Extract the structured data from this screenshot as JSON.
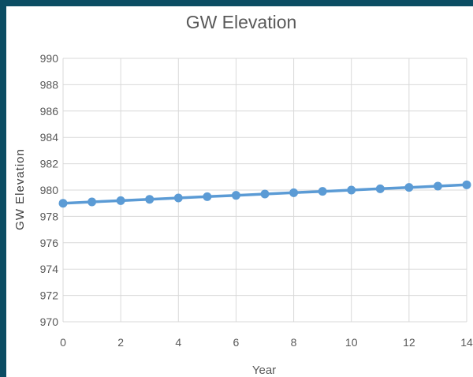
{
  "chart_data": {
    "type": "line",
    "title": "GW Elevation",
    "xlabel": "Year",
    "ylabel": "GW Elevation",
    "xlim": [
      0,
      14
    ],
    "ylim": [
      970,
      990
    ],
    "x_ticks": [
      0,
      2,
      4,
      6,
      8,
      10,
      12,
      14
    ],
    "y_ticks": [
      970,
      972,
      974,
      976,
      978,
      980,
      982,
      984,
      986,
      988,
      990
    ],
    "grid": true,
    "legend": "none",
    "colors": {
      "series": "#5b9bd5",
      "grid": "#d9d9d9",
      "text": "#595959",
      "border": "#0b4d63"
    },
    "series": [
      {
        "x": [
          0,
          1,
          2,
          3,
          4,
          5,
          6,
          7,
          8,
          9,
          10,
          11,
          12,
          13,
          14
        ],
        "y": [
          979.0,
          979.1,
          979.2,
          979.3,
          979.4,
          979.5,
          979.6,
          979.7,
          979.8,
          979.9,
          980.0,
          980.1,
          980.2,
          980.3,
          980.4
        ]
      }
    ]
  }
}
